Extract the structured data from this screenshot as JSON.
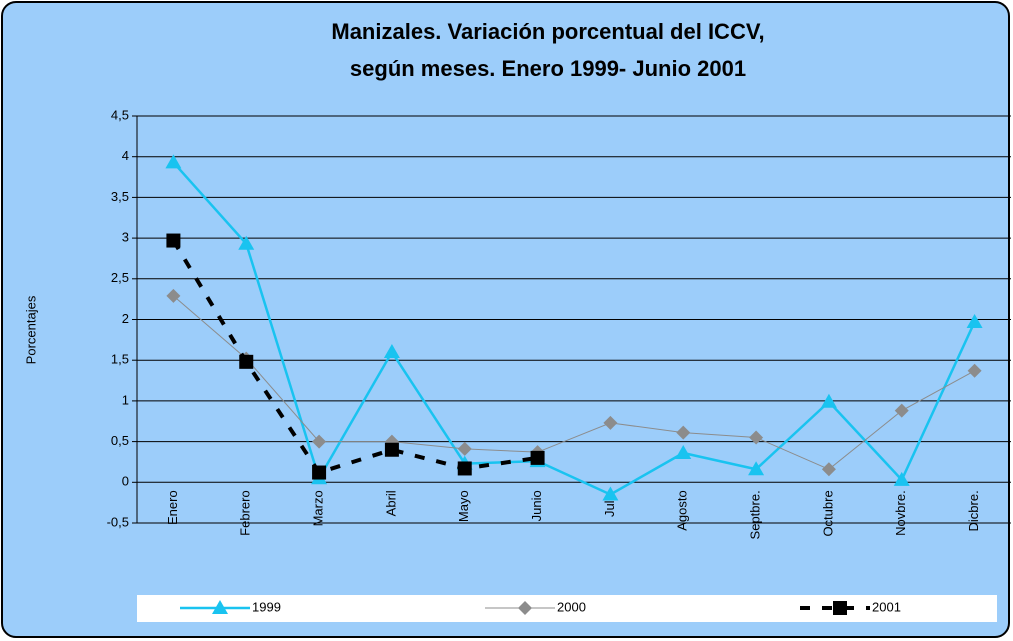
{
  "chart_data": {
    "type": "line",
    "title": "Manizales. Variación porcentual del ICCV,",
    "subtitle": "según meses. Enero 1999- Junio 2001",
    "y_label": "Porcentajes",
    "categories": [
      "Enero",
      "Febrero",
      "Marzo",
      "Abril",
      "Mayo",
      "Junio",
      "Julio",
      "Agosto",
      "Septbre.",
      "Octubre",
      "Novbre.",
      "Dicbre."
    ],
    "series": [
      {
        "name": "1999",
        "color": "#19c3f0",
        "marker": "triangle",
        "values": [
          3.93,
          2.93,
          0.05,
          1.6,
          0.23,
          0.26,
          -0.15,
          0.36,
          0.16,
          0.99,
          0.03,
          1.97
        ]
      },
      {
        "name": "2000",
        "color": "#8c8c8c",
        "marker": "diamond",
        "values": [
          2.29,
          1.52,
          0.5,
          0.5,
          0.41,
          0.37,
          0.73,
          0.61,
          0.55,
          0.16,
          0.88,
          1.37
        ]
      },
      {
        "name": "2001",
        "color": "#000000",
        "marker": "square",
        "dashed": true,
        "values": [
          2.97,
          1.48,
          0.12,
          0.4,
          0.17,
          0.3,
          null,
          null,
          null,
          null,
          null,
          null
        ]
      }
    ],
    "ylim": [
      -0.5,
      4.5
    ],
    "yticks": [
      {
        "value": -0.5,
        "label": "-0,5"
      },
      0,
      {
        "value": 0.5,
        "label": "0,5"
      },
      1,
      {
        "value": 1.5,
        "label": "1,5"
      },
      2,
      {
        "value": 2.5,
        "label": "2,5"
      },
      3,
      {
        "value": 3.5,
        "label": "3,5"
      },
      4,
      {
        "value": 4.5,
        "label": "4,5"
      }
    ],
    "grid": true,
    "legend": "bottom"
  }
}
